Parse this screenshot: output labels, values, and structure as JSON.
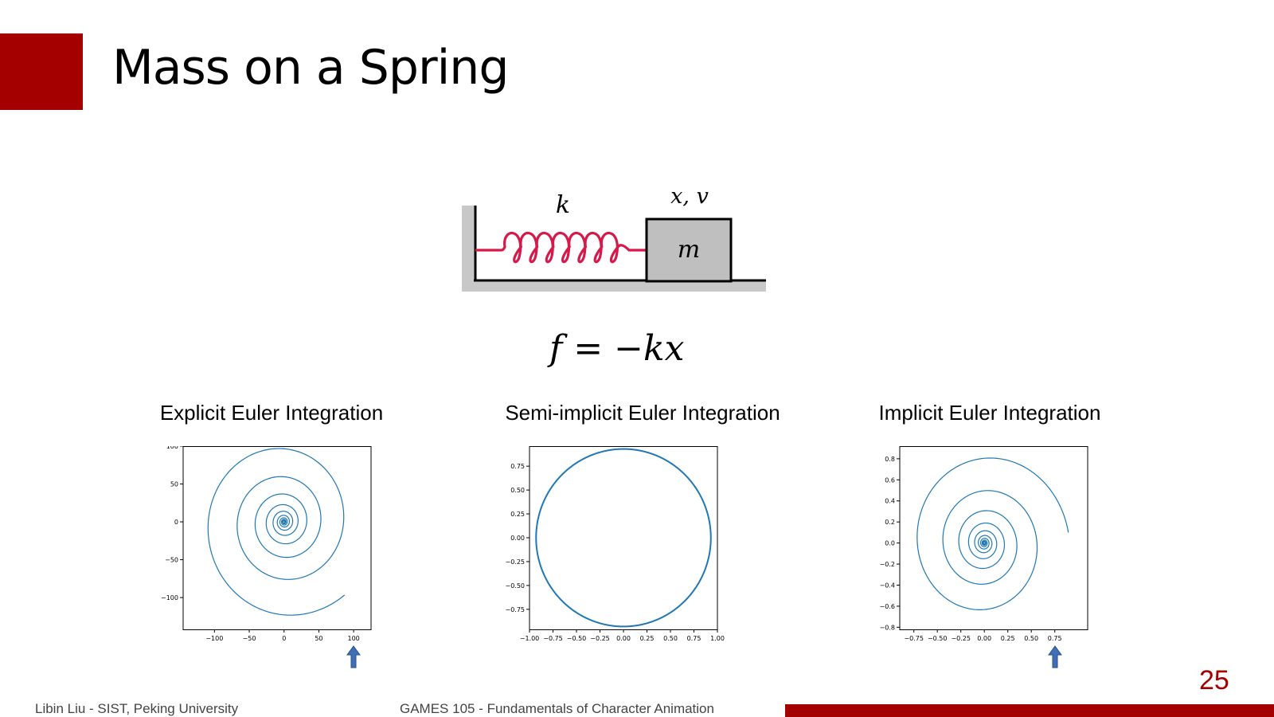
{
  "slide": {
    "title": "Mass on a Spring",
    "page_number": "25",
    "footer_left": "Libin Liu - SIST, Peking University",
    "footer_center": "GAMES 105 - Fundamentals of Character Animation",
    "accent_color": "#a50000"
  },
  "diagram": {
    "spring_label": "k",
    "state_label": "x, v",
    "mass_label": "m",
    "formula": "f = −kx",
    "spring_color": "#d6194b",
    "mass_color": "#bfbfbf",
    "ground_color": "#c8c8c8"
  },
  "charts_titles": {
    "explicit": "Explicit Euler Integration",
    "semi": "Semi-implicit Euler Integration",
    "implicit": "Implicit Euler Integration"
  },
  "chart_data": [
    {
      "type": "line",
      "title": "Explicit Euler Integration",
      "shape": "outward spiral",
      "xlim": [
        -145,
        125
      ],
      "ylim": [
        -142,
        100
      ],
      "xticks": [
        -100,
        -50,
        0,
        50,
        100
      ],
      "xtick_labels": [
        "−100",
        "−50",
        "0",
        "50",
        "100"
      ],
      "yticks": [
        100,
        50,
        0,
        -50,
        -100
      ],
      "ytick_labels": [
        "100",
        "50",
        "0",
        "−50",
        "−100"
      ],
      "end_point": [
        90,
        -100
      ],
      "outer_radius": 130,
      "turns": 10,
      "color": "#1f77b4",
      "marker": "arrow-up",
      "marker_x": 100,
      "marker_color": "#3e6fb8"
    },
    {
      "type": "line",
      "title": "Semi-implicit Euler Integration",
      "shape": "closed circle",
      "xlim": [
        -1.0,
        1.0
      ],
      "ylim": [
        -0.96,
        0.96
      ],
      "xticks": [
        -1.0,
        -0.75,
        -0.5,
        -0.25,
        0.0,
        0.25,
        0.5,
        0.75,
        1.0
      ],
      "xtick_labels": [
        "−1.00",
        "−0.75",
        "−0.50",
        "−0.25",
        "0.00",
        "0.25",
        "0.50",
        "0.75",
        "1.00"
      ],
      "yticks": [
        0.75,
        0.5,
        0.25,
        0.0,
        -0.25,
        -0.5,
        -0.75
      ],
      "ytick_labels": [
        "0.75",
        "0.50",
        "0.25",
        "0.00",
        "−0.25",
        "−0.50",
        "−0.75"
      ],
      "radius": 0.93,
      "color": "#1f77b4"
    },
    {
      "type": "line",
      "title": "Implicit Euler Integration",
      "shape": "inward spiral",
      "xlim": [
        -0.9,
        1.1
      ],
      "ylim": [
        -0.82,
        0.92
      ],
      "xticks": [
        -0.75,
        -0.5,
        -0.25,
        0.0,
        0.25,
        0.5,
        0.75
      ],
      "xtick_labels": [
        "−0.75",
        "−0.50",
        "−0.25",
        "0.00",
        "0.25",
        "0.50",
        "0.75"
      ],
      "yticks": [
        0.8,
        0.6,
        0.4,
        0.2,
        0.0,
        -0.2,
        -0.4,
        -0.6,
        -0.8
      ],
      "ytick_labels": [
        "0.8",
        "0.6",
        "0.4",
        "0.2",
        "0.0",
        "−0.2",
        "−0.4",
        "−0.6",
        "−0.8"
      ],
      "start_point": [
        0.9,
        0.1
      ],
      "outer_radius": 0.9,
      "turns": 10,
      "color": "#1f77b4",
      "marker": "arrow-up",
      "marker_x": 0.75,
      "marker_color": "#3e6fb8"
    }
  ]
}
